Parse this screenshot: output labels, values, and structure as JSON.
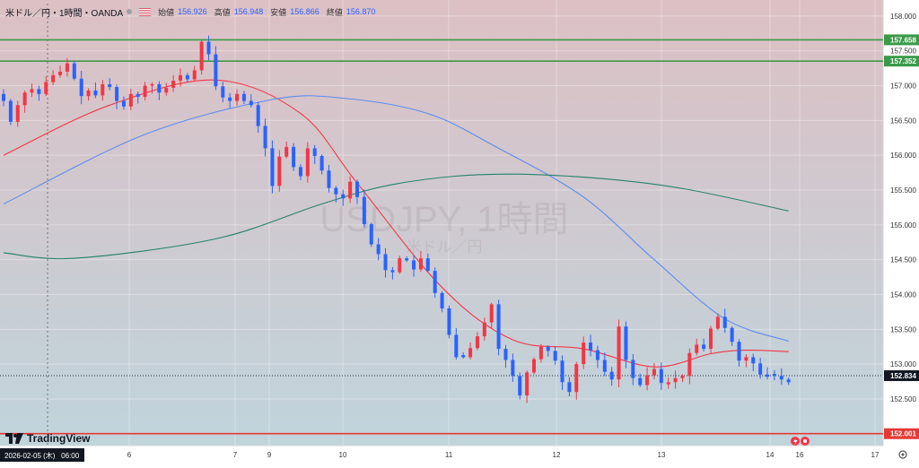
{
  "header": {
    "symbol": "米ドル／円・1時間・OANDA",
    "open_label": "始値",
    "open_value": "156.926",
    "high_label": "高値",
    "high_value": "156.948",
    "low_label": "安値",
    "low_value": "156.866",
    "close_label": "終値",
    "close_value": "156.870"
  },
  "watermark": {
    "line1": "USDJPY, 1時間",
    "line2": "米ドル／円"
  },
  "brand": {
    "name": "TradingView"
  },
  "cursor_date": "2026-02-05 (木)   06:00",
  "colors": {
    "up": "#f23645",
    "down": "#2962ff",
    "ma_short": "#f23645",
    "ma_mid": "#5b8def",
    "ma_long": "#26806b",
    "hline_green": "#3a9a48",
    "hline_red": "#e53935",
    "bg_top": "#dcc0c4",
    "bg_bottom": "#c0d4dc"
  },
  "chart_data": {
    "type": "candlestick",
    "symbol": "USDJPY",
    "timeframe": "1時間",
    "y_axis": {
      "ticks": [
        "158.000",
        "157.500",
        "157.000",
        "156.500",
        "156.000",
        "155.500",
        "155.000",
        "154.500",
        "154.000",
        "153.500",
        "153.000",
        "152.500"
      ],
      "range": [
        151.83,
        158.23
      ]
    },
    "x_axis": {
      "ticks": [
        "6",
        "7",
        "9",
        "10",
        "11",
        "12",
        "13",
        "14",
        "16",
        "17"
      ]
    },
    "horizontal_lines": [
      {
        "value": 157.658,
        "label": "157.658",
        "color": "green"
      },
      {
        "value": 157.352,
        "label": "157.352",
        "color": "green"
      },
      {
        "value": 152.001,
        "label": "152.001",
        "color": "red"
      }
    ],
    "current_price": {
      "value": 152.834,
      "label": "152.834"
    },
    "close_path": [
      156.78,
      156.48,
      156.72,
      156.9,
      156.95,
      156.88,
      157.05,
      157.15,
      157.2,
      157.32,
      157.1,
      156.85,
      156.93,
      156.86,
      157.02,
      156.98,
      156.78,
      156.7,
      156.88,
      156.84,
      157.0,
      157.02,
      156.9,
      156.97,
      157.07,
      157.15,
      157.09,
      157.22,
      157.63,
      157.45,
      156.99,
      156.83,
      156.78,
      156.88,
      156.78,
      156.72,
      156.42,
      156.1,
      155.56,
      155.98,
      156.12,
      155.83,
      155.7,
      156.1,
      155.99,
      155.78,
      155.53,
      155.44,
      155.38,
      155.62,
      155.4,
      155.01,
      154.72,
      154.58,
      154.35,
      154.32,
      154.52,
      154.49,
      154.36,
      154.52,
      154.34,
      154.02,
      153.8,
      153.42,
      153.1,
      153.1,
      153.23,
      153.4,
      153.6,
      153.86,
      153.22,
      153.06,
      152.83,
      152.55,
      152.88,
      153.07,
      153.25,
      153.19,
      153.05,
      152.74,
      152.6,
      153.0,
      153.31,
      153.2,
      153.06,
      152.89,
      152.78,
      153.54,
      153.06,
      152.8,
      152.7,
      152.84,
      152.93,
      152.73,
      152.74,
      152.8,
      152.83,
      153.16,
      153.28,
      153.22,
      153.51,
      153.68,
      153.52,
      153.32,
      153.05,
      153.1,
      153.01,
      152.85,
      152.82,
      152.83,
      152.78,
      152.74
    ],
    "moving_averages": [
      {
        "color": "red",
        "points": [
          [
            0,
            156.0
          ],
          [
            15,
            156.72
          ],
          [
            30,
            157.08
          ],
          [
            42,
            156.6
          ],
          [
            50,
            155.6
          ],
          [
            62,
            154.1
          ],
          [
            72,
            153.35
          ],
          [
            82,
            153.22
          ],
          [
            92,
            152.96
          ],
          [
            100,
            153.15
          ],
          [
            105,
            153.2
          ],
          [
            111,
            153.18
          ]
        ]
      },
      {
        "color": "blue",
        "points": [
          [
            0,
            155.3
          ],
          [
            20,
            156.3
          ],
          [
            38,
            156.8
          ],
          [
            48,
            156.82
          ],
          [
            60,
            156.6
          ],
          [
            70,
            156.1
          ],
          [
            82,
            155.4
          ],
          [
            92,
            154.5
          ],
          [
            102,
            153.65
          ],
          [
            111,
            153.33
          ]
        ]
      },
      {
        "color": "green",
        "points": [
          [
            0,
            154.6
          ],
          [
            10,
            154.52
          ],
          [
            30,
            154.8
          ],
          [
            45,
            155.3
          ],
          [
            55,
            155.58
          ],
          [
            67,
            155.72
          ],
          [
            80,
            155.7
          ],
          [
            95,
            155.54
          ],
          [
            111,
            155.2
          ]
        ]
      }
    ]
  }
}
